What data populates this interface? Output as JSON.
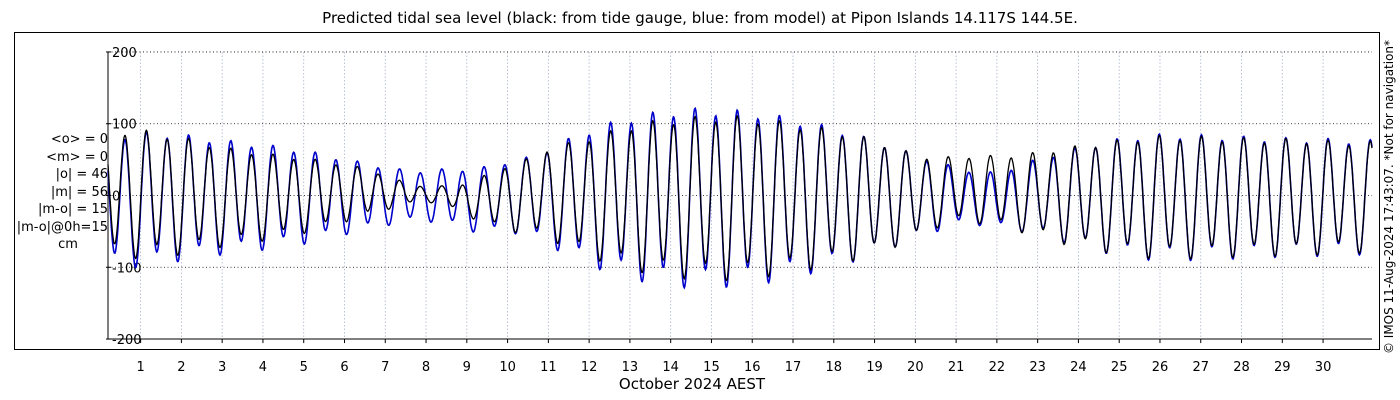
{
  "chart_data": {
    "type": "line",
    "title": "Predicted tidal sea level (black: from tide gauge, blue: from model) at Pipon Islands 14.117S 144.5E.",
    "xlabel": "October 2024 AEST",
    "ylabel": "",
    "x_ticks": [
      "1",
      "2",
      "3",
      "4",
      "5",
      "6",
      "7",
      "8",
      "9",
      "10",
      "11",
      "12",
      "13",
      "14",
      "15",
      "16",
      "17",
      "18",
      "19",
      "20",
      "21",
      "22",
      "23",
      "24",
      "25",
      "26",
      "27",
      "28",
      "29",
      "30"
    ],
    "xlim": [
      0.2,
      31.2
    ],
    "y_ticks": [
      "200",
      "100",
      "0",
      "-100",
      "-200"
    ],
    "y_tick_values": [
      200,
      100,
      0,
      -100,
      -200
    ],
    "ylim": [
      -225,
      225
    ],
    "grid": true,
    "series": [
      {
        "color": "#000000",
        "x": [
          0.2,
          0.5,
          1.0,
          1.5,
          2.0,
          2.5,
          3.0,
          3.5,
          4.0,
          4.5,
          5.0,
          5.5,
          6.0,
          6.5,
          7.0,
          7.5,
          8.0,
          8.5,
          9.0,
          9.5,
          10.0,
          10.5,
          11.0,
          11.5,
          12.0,
          12.5,
          13.0,
          13.5,
          14.0,
          14.5,
          15.0,
          15.5,
          16.0,
          16.5,
          17.0,
          17.5,
          18.0,
          18.5,
          19.0,
          19.5,
          20.0,
          20.5,
          21.0,
          21.5,
          22.0,
          22.5,
          23.0,
          23.5,
          24.0,
          24.5,
          25.0,
          25.5,
          26.0,
          26.5,
          27.0,
          27.5,
          28.0,
          28.5,
          29.0,
          29.5,
          30.0,
          30.5,
          31.0,
          31.2
        ],
        "amplitude": [
          85,
          86,
          88,
          84,
          80,
          74,
          68,
          64,
          60,
          56,
          52,
          46,
          40,
          33,
          24,
          15,
          10,
          14,
          22,
          35,
          45,
          52,
          62,
          72,
          82,
          90,
          98,
          104,
          108,
          110,
          112,
          112,
          110,
          106,
          102,
          97,
          92,
          86,
          78,
          68,
          58,
          48,
          45,
          46,
          48,
          52,
          58,
          64,
          70,
          74,
          78,
          82,
          84,
          84,
          83,
          82,
          81,
          80,
          80,
          79,
          78,
          76,
          76,
          76
        ],
        "offset": [
          5,
          5,
          5,
          3,
          2,
          2,
          0,
          0,
          0,
          0,
          2,
          2,
          5,
          5,
          5,
          3,
          2,
          0,
          -5,
          -5,
          -2,
          0,
          5,
          2,
          0,
          0,
          0,
          0,
          0,
          0,
          0,
          0,
          0,
          0,
          0,
          0,
          0,
          0,
          0,
          0,
          0,
          5,
          10,
          10,
          8,
          5,
          3,
          2,
          0,
          0,
          0,
          0,
          0,
          0,
          0,
          0,
          0,
          0,
          0,
          0,
          0,
          0,
          0,
          0
        ]
      },
      {
        "color": "#0000cc",
        "x": [
          0.2,
          0.5,
          1.0,
          1.5,
          2.0,
          2.5,
          3.0,
          3.5,
          4.0,
          4.5,
          5.0,
          5.5,
          6.0,
          6.5,
          7.0,
          7.5,
          8.0,
          8.5,
          9.0,
          9.5,
          10.0,
          10.5,
          11.0,
          11.5,
          12.0,
          12.5,
          13.0,
          13.5,
          14.0,
          14.5,
          15.0,
          15.5,
          16.0,
          16.5,
          17.0,
          17.5,
          18.0,
          18.5,
          19.0,
          19.5,
          20.0,
          20.5,
          21.0,
          21.5,
          22.0,
          22.5,
          23.0,
          23.5,
          24.0,
          24.5,
          25.0,
          25.5,
          26.0,
          26.5,
          27.0,
          27.5,
          28.0,
          28.5,
          29.0,
          29.5,
          30.0,
          30.5,
          31.0,
          31.2
        ],
        "amplitude": [
          88,
          90,
          92,
          90,
          86,
          82,
          78,
          75,
          72,
          68,
          64,
          58,
          52,
          46,
          40,
          36,
          34,
          38,
          42,
          46,
          48,
          54,
          66,
          80,
          92,
          102,
          110,
          116,
          120,
          122,
          122,
          120,
          118,
          114,
          108,
          102,
          95,
          87,
          78,
          68,
          58,
          48,
          40,
          36,
          38,
          44,
          52,
          60,
          68,
          74,
          80,
          84,
          86,
          86,
          85,
          84,
          83,
          82,
          81,
          80,
          80,
          79,
          78,
          78
        ],
        "offset": [
          -5,
          -5,
          -3,
          -2,
          0,
          0,
          0,
          0,
          0,
          0,
          0,
          0,
          0,
          0,
          0,
          0,
          0,
          0,
          -5,
          -5,
          0,
          0,
          0,
          0,
          0,
          0,
          0,
          0,
          0,
          0,
          0,
          0,
          0,
          0,
          0,
          0,
          0,
          0,
          0,
          0,
          0,
          0,
          0,
          -3,
          -5,
          -3,
          0,
          0,
          0,
          0,
          0,
          0,
          0,
          0,
          0,
          0,
          0,
          0,
          0,
          0,
          0,
          0,
          0,
          0
        ]
      }
    ]
  },
  "stats": [
    "<o> = 0",
    "<m> = 0",
    "|o| = 46",
    "|m| = 56",
    "|m-o| = 15",
    "|m-o|@0h=15",
    "cm"
  ],
  "credit": "© IMOS 11-Aug-2024 17:43:07. *Not for navigation*"
}
